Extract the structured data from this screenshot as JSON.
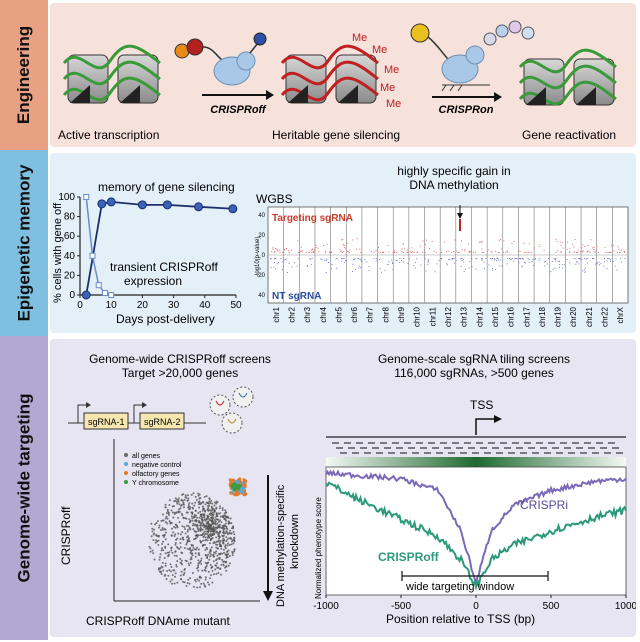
{
  "bands": {
    "engineering": {
      "label": "Engineering",
      "captions": [
        "Active transcription",
        "Heritable gene silencing",
        "Gene reactivation"
      ],
      "tool_off": "CRISPRoff",
      "tool_on": "CRISPRon",
      "me_marks": [
        "Me",
        "Me",
        "Me",
        "Me",
        "Me"
      ],
      "colors": {
        "band": "#f6e2da",
        "label": "#e9a184"
      }
    },
    "memory": {
      "label": "Epigenetic memory",
      "colors": {
        "band": "#e4f0f8",
        "label": "#7fc0e0"
      }
    },
    "targeting": {
      "label": "Genome-wide targeting",
      "colors": {
        "band": "#e7e5f1",
        "label": "#b3a8d1"
      }
    }
  },
  "memory_chart": {
    "ylabel": "% cells with gene off",
    "xlabel": "Days post-delivery",
    "annot_memory": "memory of gene silencing",
    "annot_transient_1": "transient CRISPRoff",
    "annot_transient_2": "expression",
    "ticks_x": [
      "0",
      "10",
      "20",
      "30",
      "40",
      "50"
    ],
    "ticks_y": [
      "0",
      "20",
      "40",
      "60",
      "80",
      "100"
    ],
    "chart_data": {
      "type": "line",
      "xlim": [
        0,
        50
      ],
      "ylim": [
        0,
        100
      ],
      "series": [
        {
          "x": [
            2,
            7,
            10,
            20,
            28,
            38,
            49
          ],
          "y": [
            0,
            93,
            95,
            92,
            92,
            90,
            88
          ]
        },
        {
          "x": [
            2,
            4,
            6,
            8,
            10
          ],
          "y": [
            100,
            40,
            10,
            2,
            0
          ]
        }
      ]
    }
  },
  "wgbs": {
    "title": "WGBS",
    "headline_1": "highly specific gain in",
    "headline_2": "DNA methylation",
    "targeting": "Targeting sgRNA",
    "nt": "NT sgRNA",
    "yaxis": "-log10(p-value)",
    "yticks": [
      "40",
      "20",
      "0",
      "20",
      "40"
    ],
    "chromosomes": [
      "chr1",
      "chr2",
      "chr3",
      "chr4",
      "chr5",
      "chr6",
      "chr7",
      "chr8",
      "chr9",
      "chr10",
      "chr11",
      "chr12",
      "chr13",
      "chr14",
      "chr15",
      "chr16",
      "chr17",
      "chr18",
      "chr19",
      "chr20",
      "chr21",
      "chr22",
      "chrX"
    ]
  },
  "screens": {
    "title_1": "Genome-wide CRISPRoff screens",
    "title_2": "Target >20,000 genes",
    "sg1": "sgRNA-1",
    "sg2": "sgRNA-2",
    "legend": [
      "all genes",
      "negative control",
      "olfactory genes",
      "Y chromosome"
    ],
    "ylabel": "CRISPRoff",
    "xlabel": "CRISPRoff DNAme mutant",
    "arrow_1": "DNA methylation-specific",
    "arrow_2": "knockdown"
  },
  "tiling": {
    "title_1": "Genome-scale sgRNA tiling screens",
    "title_2": "116,000 sgRNAs, >500 genes",
    "tss": "TSS",
    "ylabel": "Normalized phenotype score",
    "xlabel": "Position relative to TSS (bp)",
    "crispri": "CRISPRi",
    "crisproff": "CRISPRoff",
    "window": "wide targeting window",
    "xticks": [
      "-1000",
      "-500",
      "0",
      "500",
      "1000"
    ],
    "chart_data": {
      "type": "line",
      "xlim": [
        -1000,
        1000
      ],
      "series": [
        {
          "name": "CRISPRi",
          "x": [
            -1000,
            -800,
            -500,
            -250,
            -100,
            0,
            100,
            250,
            500,
            800,
            1000
          ],
          "y": [
            1.0,
            0.98,
            0.95,
            0.85,
            0.5,
            0.05,
            0.5,
            0.72,
            0.85,
            0.93,
            0.95
          ]
        },
        {
          "name": "CRISPRoff",
          "x": [
            -1000,
            -800,
            -500,
            -250,
            -100,
            0,
            100,
            250,
            500,
            800,
            1000
          ],
          "y": [
            0.92,
            0.78,
            0.6,
            0.45,
            0.25,
            0.02,
            0.25,
            0.38,
            0.5,
            0.62,
            0.68
          ]
        }
      ]
    }
  }
}
